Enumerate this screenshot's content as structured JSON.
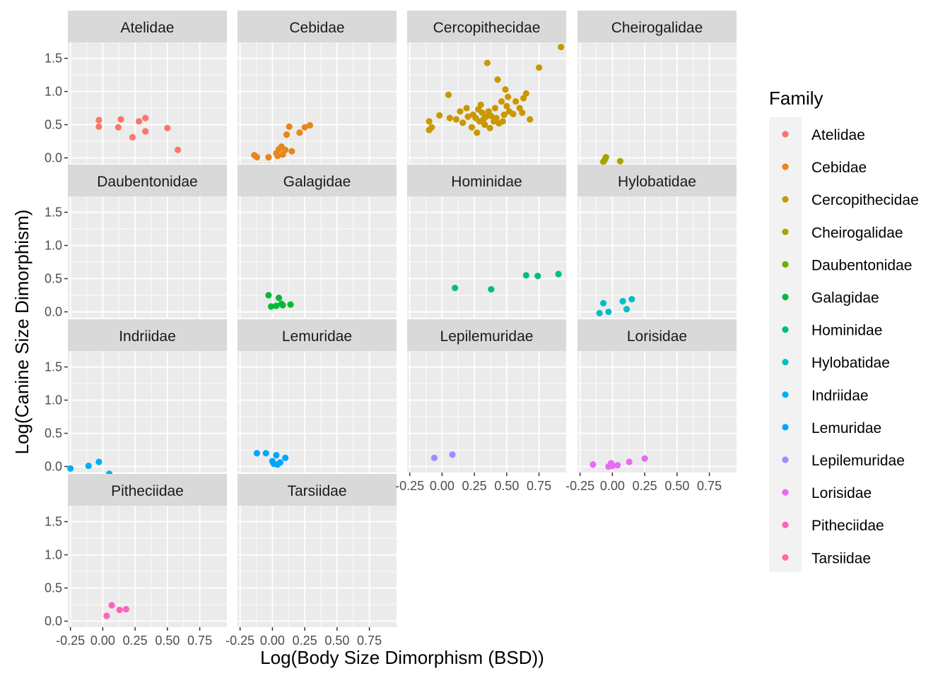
{
  "chart_data": {
    "type": "scatter",
    "xlabel": "Log(Body Size Dimorphism (BSD))",
    "ylabel": "Log(Canine Size Dimorphism)",
    "xlim": [
      -0.27,
      0.96
    ],
    "ylim": [
      -0.09,
      1.74
    ],
    "x_ticks": [
      -0.25,
      0.0,
      0.25,
      0.5,
      0.75
    ],
    "x_tick_labels": [
      "-0.25",
      "0.00",
      "0.25",
      "0.50",
      "0.75"
    ],
    "y_ticks": [
      0.0,
      0.5,
      1.0,
      1.5
    ],
    "y_tick_labels": [
      "0.0",
      "0.5",
      "1.0",
      "1.5"
    ],
    "legend": {
      "title": "Family",
      "position": "right",
      "entries": [
        {
          "label": "Atelidae",
          "color": "#F8766D"
        },
        {
          "label": "Cebidae",
          "color": "#E7861B"
        },
        {
          "label": "Cercopithecidae",
          "color": "#C99800"
        },
        {
          "label": "Cheirogalidae",
          "color": "#A3A500"
        },
        {
          "label": "Daubentonidae",
          "color": "#6BB100"
        },
        {
          "label": "Galagidae",
          "color": "#00BA38"
        },
        {
          "label": "Hominidae",
          "color": "#00BF7D"
        },
        {
          "label": "Hylobatidae",
          "color": "#00BFC4"
        },
        {
          "label": "Indriidae",
          "color": "#00B0F6"
        },
        {
          "label": "Lemuridae",
          "color": "#00A5FF"
        },
        {
          "label": "Lepilemuridae",
          "color": "#9590FF"
        },
        {
          "label": "Lorisidae",
          "color": "#E76BF3"
        },
        {
          "label": "Pitheciidae",
          "color": "#FF62BC"
        },
        {
          "label": "Tarsiidae",
          "color": "#FF6C91"
        }
      ]
    },
    "panels": [
      {
        "name": "Atelidae",
        "color": "#F8766D",
        "points": [
          [
            -0.03,
            0.57
          ],
          [
            -0.03,
            0.47
          ],
          [
            0.12,
            0.46
          ],
          [
            0.14,
            0.58
          ],
          [
            0.23,
            0.31
          ],
          [
            0.28,
            0.55
          ],
          [
            0.33,
            0.6
          ],
          [
            0.33,
            0.4
          ],
          [
            0.5,
            0.45
          ],
          [
            0.58,
            0.12
          ]
        ]
      },
      {
        "name": "Cebidae",
        "color": "#E7861B",
        "points": [
          [
            -0.14,
            0.04
          ],
          [
            -0.12,
            0.01
          ],
          [
            -0.03,
            0.01
          ],
          [
            0.03,
            0.07
          ],
          [
            0.04,
            0.03
          ],
          [
            0.05,
            0.13
          ],
          [
            0.07,
            0.17
          ],
          [
            0.08,
            0.05
          ],
          [
            0.1,
            0.12
          ],
          [
            0.11,
            0.35
          ],
          [
            0.13,
            0.47
          ],
          [
            0.15,
            0.1
          ],
          [
            0.21,
            0.38
          ],
          [
            0.25,
            0.46
          ],
          [
            0.29,
            0.49
          ]
        ]
      },
      {
        "name": "Cercopithecidae",
        "color": "#C99800",
        "points": [
          [
            -0.1,
            0.55
          ],
          [
            -0.1,
            0.42
          ],
          [
            -0.08,
            0.46
          ],
          [
            -0.02,
            0.64
          ],
          [
            0.05,
            0.95
          ],
          [
            0.06,
            0.6
          ],
          [
            0.11,
            0.58
          ],
          [
            0.14,
            0.7
          ],
          [
            0.16,
            0.53
          ],
          [
            0.19,
            0.75
          ],
          [
            0.2,
            0.62
          ],
          [
            0.23,
            0.46
          ],
          [
            0.24,
            0.65
          ],
          [
            0.26,
            0.6
          ],
          [
            0.27,
            0.38
          ],
          [
            0.28,
            0.73
          ],
          [
            0.29,
            0.55
          ],
          [
            0.3,
            0.8
          ],
          [
            0.31,
            0.68
          ],
          [
            0.32,
            0.58
          ],
          [
            0.33,
            0.5
          ],
          [
            0.34,
            0.62
          ],
          [
            0.35,
            1.43
          ],
          [
            0.36,
            0.7
          ],
          [
            0.37,
            0.45
          ],
          [
            0.38,
            0.63
          ],
          [
            0.4,
            0.55
          ],
          [
            0.41,
            0.75
          ],
          [
            0.42,
            0.6
          ],
          [
            0.43,
            1.18
          ],
          [
            0.44,
            0.52
          ],
          [
            0.46,
            0.85
          ],
          [
            0.47,
            0.55
          ],
          [
            0.48,
            0.65
          ],
          [
            0.49,
            1.03
          ],
          [
            0.5,
            0.78
          ],
          [
            0.51,
            0.92
          ],
          [
            0.52,
            0.7
          ],
          [
            0.55,
            0.66
          ],
          [
            0.57,
            0.85
          ],
          [
            0.6,
            0.75
          ],
          [
            0.62,
            0.68
          ],
          [
            0.63,
            0.9
          ],
          [
            0.65,
            0.97
          ],
          [
            0.68,
            0.58
          ],
          [
            0.75,
            1.36
          ],
          [
            0.92,
            1.67
          ]
        ]
      },
      {
        "name": "Cheirogalidae",
        "color": "#A3A500",
        "points": [
          [
            -0.07,
            -0.06
          ],
          [
            -0.06,
            -0.03
          ],
          [
            -0.05,
            0.01
          ],
          [
            0.06,
            -0.05
          ]
        ]
      },
      {
        "name": "Daubentonidae",
        "color": "#6BB100",
        "points": []
      },
      {
        "name": "Galagidae",
        "color": "#00BA38",
        "points": [
          [
            -0.03,
            0.25
          ],
          [
            -0.01,
            0.08
          ],
          [
            0.03,
            0.09
          ],
          [
            0.05,
            0.21
          ],
          [
            0.07,
            0.12
          ],
          [
            0.08,
            0.1
          ],
          [
            0.14,
            0.11
          ]
        ]
      },
      {
        "name": "Hominidae",
        "color": "#00BF7D",
        "points": [
          [
            0.1,
            0.36
          ],
          [
            0.38,
            0.34
          ],
          [
            0.65,
            0.55
          ],
          [
            0.74,
            0.54
          ],
          [
            0.9,
            0.57
          ]
        ]
      },
      {
        "name": "Hylobatidae",
        "color": "#00BFC4",
        "points": [
          [
            -0.1,
            -0.02
          ],
          [
            -0.07,
            0.13
          ],
          [
            -0.03,
            0.0
          ],
          [
            0.08,
            0.16
          ],
          [
            0.11,
            0.04
          ],
          [
            0.15,
            0.19
          ]
        ]
      },
      {
        "name": "Indriidae",
        "color": "#00B0F6",
        "points": [
          [
            -0.25,
            -0.03
          ],
          [
            -0.11,
            0.01
          ],
          [
            -0.03,
            0.07
          ],
          [
            0.05,
            -0.11
          ]
        ]
      },
      {
        "name": "Lemuridae",
        "color": "#00A5FF",
        "points": [
          [
            -0.12,
            0.2
          ],
          [
            -0.05,
            0.2
          ],
          [
            0.0,
            0.08
          ],
          [
            0.01,
            0.04
          ],
          [
            0.03,
            0.17
          ],
          [
            0.04,
            0.03
          ],
          [
            0.06,
            0.06
          ],
          [
            0.1,
            0.13
          ]
        ]
      },
      {
        "name": "Lepilemuridae",
        "color": "#9590FF",
        "points": [
          [
            -0.06,
            0.13
          ],
          [
            0.08,
            0.18
          ]
        ]
      },
      {
        "name": "Lorisidae",
        "color": "#E76BF3",
        "points": [
          [
            -0.15,
            0.03
          ],
          [
            -0.03,
            0.0
          ],
          [
            -0.01,
            0.05
          ],
          [
            0.0,
            0.01
          ],
          [
            0.04,
            0.02
          ],
          [
            0.13,
            0.07
          ],
          [
            0.25,
            0.12
          ]
        ]
      },
      {
        "name": "Pitheciidae",
        "color": "#FF62BC",
        "points": [
          [
            0.03,
            0.08
          ],
          [
            0.07,
            0.24
          ],
          [
            0.13,
            0.17
          ],
          [
            0.18,
            0.18
          ]
        ]
      },
      {
        "name": "Tarsiidae",
        "color": "#FF6C91",
        "points": []
      }
    ]
  }
}
